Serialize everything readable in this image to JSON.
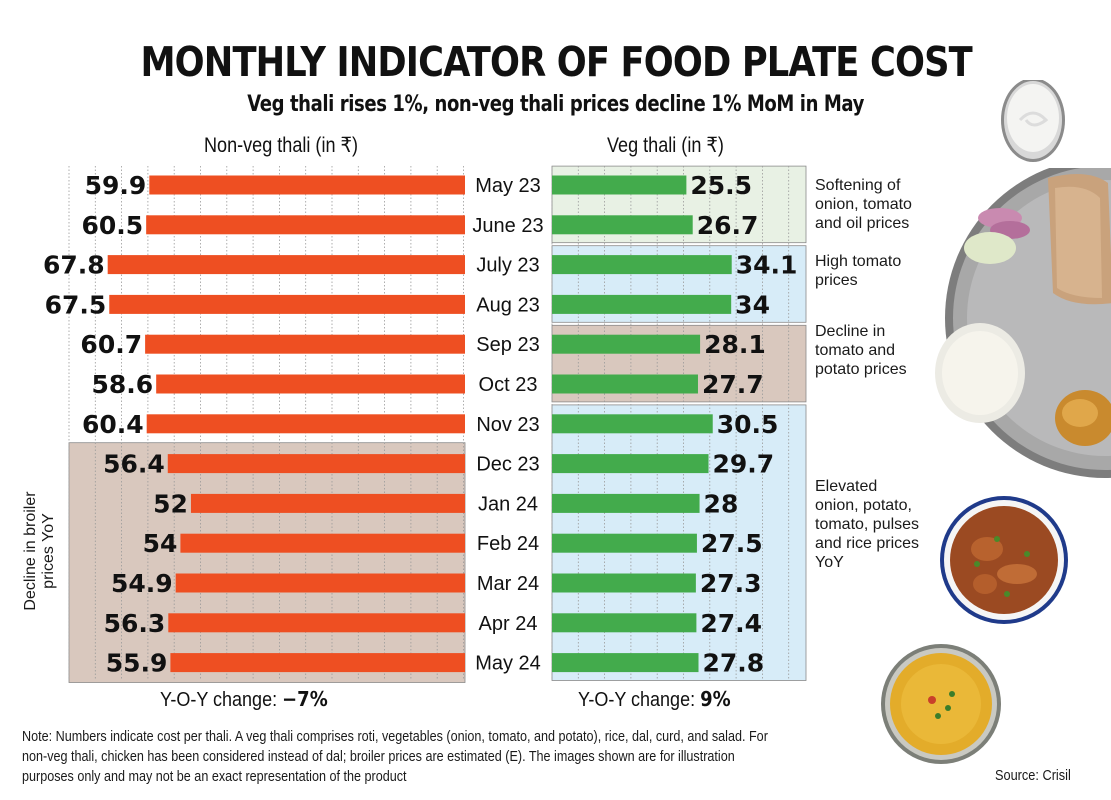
{
  "title": "MONTHLY INDICATOR OF FOOD PLATE COST",
  "subtitle": "Veg thali rises 1%, non-veg thali prices decline 1% MoM in May",
  "chart_data": {
    "type": "bar",
    "orientation": "horizontal",
    "title": "MONTHLY INDICATOR OF FOOD PLATE COST",
    "subtitle": "Veg thali rises 1%, non-veg thali prices decline 1% MoM in May",
    "categories": [
      "May 23",
      "June 23",
      "July 23",
      "Aug 23",
      "Sep 23",
      "Oct 23",
      "Nov 23",
      "Dec 23",
      "Jan 24",
      "Feb 24",
      "Mar 24",
      "Apr 24",
      "May 24"
    ],
    "series": [
      {
        "name": "Non-veg thali (in ₹)",
        "color": "#ee4f22",
        "direction": "left",
        "values": [
          59.9,
          60.5,
          67.8,
          67.5,
          60.7,
          58.6,
          60.4,
          56.4,
          52,
          54,
          54.9,
          56.3,
          55.9
        ],
        "yoy_label": "Y-O-Y change:",
        "yoy_value": "−7%"
      },
      {
        "name": "Veg thali (in ₹)",
        "color": "#43ab4c",
        "direction": "right",
        "values": [
          25.5,
          26.7,
          34.1,
          34,
          28.1,
          27.7,
          30.5,
          29.7,
          28,
          27.5,
          27.3,
          27.4,
          27.8
        ],
        "yoy_label": "Y-O-Y change:",
        "yoy_value": "9%"
      }
    ],
    "grid": "vertical dotted",
    "annotations": [
      {
        "series": "Veg thali (in ₹)",
        "from": "May 23",
        "to": "June 23",
        "text": "Softening of onion, tomato and oil prices",
        "color": "#e8f1e4"
      },
      {
        "series": "Veg thali (in ₹)",
        "from": "July 23",
        "to": "Aug 23",
        "text": "High tomato prices",
        "color": "#d7ecf8"
      },
      {
        "series": "Veg thali (in ₹)",
        "from": "Sep 23",
        "to": "Oct 23",
        "text": "Decline in tomato and potato prices",
        "color": "#d9c8be"
      },
      {
        "series": "Veg thali (in ₹)",
        "from": "Nov 23",
        "to": "May 24",
        "text": "Elevated onion, potato, tomato, pulses and rice prices YoY",
        "color": "#d7ecf8"
      },
      {
        "series": "Non-veg thali (in ₹)",
        "from": "Dec 23",
        "to": "May 24",
        "text": "Decline in broiler prices YoY",
        "color": "#d9c8be"
      }
    ]
  },
  "headers": {
    "nonveg": "Non-veg thali (in ₹)",
    "veg": "Veg thali (in ₹)"
  },
  "yoy": {
    "nonveg_label": "Y-O-Y change:",
    "nonveg_value": "−7%",
    "veg_label": "Y-O-Y change:",
    "veg_value": "9%"
  },
  "annotations": {
    "softening": "Softening of onion, tomato and oil prices",
    "high_tomato": "High tomato prices",
    "decline_tomato": "Decline in tomato and potato prices",
    "elevated": "Elevated onion, potato, tomato, pulses and rice prices YoY",
    "broiler": "Decline in broiler prices YoY"
  },
  "note": "Note: Numbers indicate cost per thali. A veg thali comprises roti, vegetables (onion, tomato, and potato), rice, dal, curd, and salad. For non-veg thali, chicken has been considered instead of dal; broiler prices are estimated (E). The images shown are for illustration purposes only and may not be an exact representation of the product",
  "source": "Source: Crisil",
  "images": {
    "curd": "curd-bowl-photo",
    "plate": "veg-thali-plate-photo",
    "chicken": "chicken-curry-bowl-photo",
    "dal": "dal-bowl-photo"
  }
}
